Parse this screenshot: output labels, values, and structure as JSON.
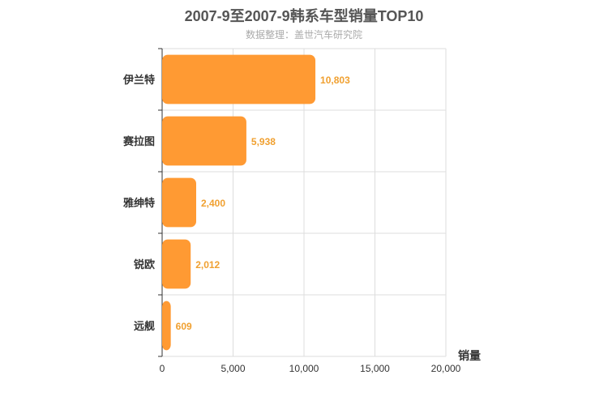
{
  "chart_data": {
    "type": "bar",
    "orientation": "horizontal",
    "title": "2007-9至2007-9韩系车型销量TOP10",
    "subtitle": "数据整理：盖世汽车研究院",
    "categories": [
      "伊兰特",
      "赛拉图",
      "雅绅特",
      "锐欧",
      "远舰"
    ],
    "values": [
      10803,
      5938,
      2400,
      2012,
      609
    ],
    "value_labels": [
      "10,803",
      "5,938",
      "2,400",
      "2,012",
      "609"
    ],
    "xlabel": "销量",
    "ylabel": "",
    "xlim": [
      0,
      20000
    ],
    "xticks": [
      0,
      5000,
      10000,
      15000,
      20000
    ],
    "xtick_labels": [
      "0",
      "5,000",
      "10,000",
      "15,000",
      "20,000"
    ],
    "grid": true,
    "colors": {
      "bar": "#ff9a33",
      "label": "#f0a030",
      "grid": "#dddddd",
      "axis": "#333333"
    }
  }
}
